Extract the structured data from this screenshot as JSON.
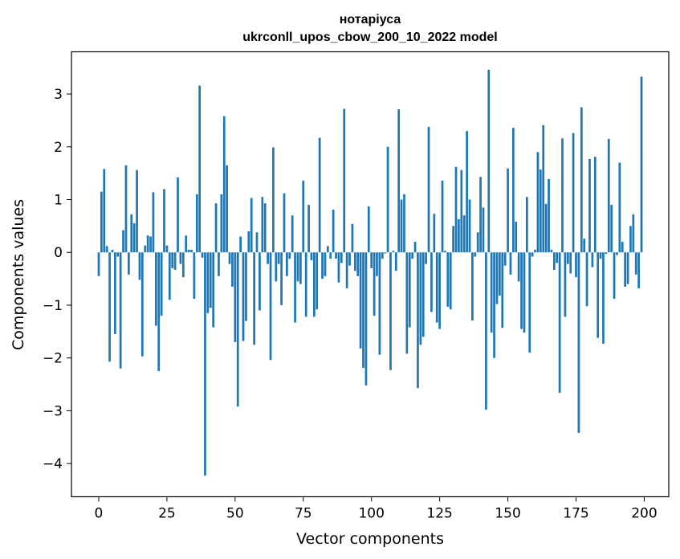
{
  "chart_data": {
    "type": "bar",
    "title_line1": "нотаріуса",
    "title_line2": "ukrconll_upos_cbow_200_10_2022 model",
    "xlabel": "Vector components",
    "ylabel": "Components values",
    "xlim": [
      -10,
      209
    ],
    "ylim": [
      -4.63,
      3.8
    ],
    "xticks": [
      0,
      25,
      50,
      75,
      100,
      125,
      150,
      175,
      200
    ],
    "yticks": [
      3,
      2,
      1,
      0,
      -1,
      -2,
      -3,
      -4
    ],
    "ytick_labels": [
      "3",
      "2",
      "1",
      "0",
      "−1",
      "−2",
      "−3",
      "−4"
    ],
    "bar_color": "#1f77b4",
    "values": [
      -0.45,
      1.15,
      1.58,
      0.12,
      -2.07,
      0.05,
      -1.55,
      -0.08,
      -2.2,
      0.42,
      1.65,
      -0.42,
      0.72,
      0.55,
      1.56,
      -0.52,
      -1.97,
      0.13,
      0.32,
      0.3,
      1.14,
      -1.39,
      -2.25,
      -1.2,
      1.2,
      0.13,
      -0.9,
      -0.3,
      -0.33,
      1.42,
      -0.22,
      -0.47,
      0.32,
      0.05,
      0.05,
      -0.88,
      1.1,
      3.16,
      -0.1,
      -4.23,
      -1.15,
      -1.05,
      -1.42,
      0.93,
      -0.45,
      1.1,
      2.58,
      1.65,
      -0.22,
      -0.65,
      -1.7,
      -2.92,
      0.3,
      -1.68,
      -1.3,
      0.4,
      1.03,
      -1.75,
      0.38,
      -1.1,
      1.05,
      0.93,
      -0.22,
      -2.04,
      1.99,
      -0.55,
      -0.22,
      -1.0,
      1.12,
      -0.45,
      -0.12,
      0.7,
      -1.33,
      -0.55,
      -0.6,
      1.36,
      -1.22,
      0.9,
      -0.15,
      -1.22,
      -1.08,
      2.17,
      -0.5,
      -0.45,
      0.12,
      -0.12,
      0.81,
      -0.12,
      -0.57,
      -0.2,
      2.72,
      -0.68,
      -0.25,
      0.54,
      -0.35,
      -0.45,
      -1.82,
      -2.19,
      -2.52,
      0.87,
      -0.3,
      -1.2,
      -0.45,
      -1.94,
      -0.12,
      -0.02,
      2.0,
      -2.23,
      0.03,
      -0.35,
      2.71,
      1.0,
      1.1,
      -1.92,
      -1.42,
      -0.12,
      0.2,
      -2.57,
      -1.75,
      -1.6,
      -0.22,
      2.38,
      -1.13,
      0.73,
      -1.33,
      -1.45,
      1.36,
      0.03,
      -1.03,
      -1.08,
      0.5,
      1.62,
      0.63,
      1.56,
      0.7,
      2.3,
      1.0,
      -1.29,
      -0.08,
      0.38,
      1.43,
      0.85,
      -2.98,
      3.46,
      -1.52,
      -2.0,
      -0.98,
      -0.82,
      -1.43,
      -0.25,
      1.59,
      -0.42,
      2.36,
      0.58,
      -0.55,
      -1.45,
      -1.52,
      1.05,
      -1.9,
      -0.08,
      0.05,
      1.9,
      1.57,
      2.41,
      0.92,
      1.39,
      0.05,
      -0.33,
      -0.2,
      -2.66,
      2.16,
      -1.22,
      -0.22,
      -0.4,
      2.26,
      -0.47,
      -3.42,
      2.75,
      0.26,
      -1.02,
      1.77,
      -0.28,
      1.81,
      -1.62,
      -0.12,
      -1.73,
      -0.03,
      2.15,
      0.9,
      -0.88,
      -0.05,
      1.7,
      0.2,
      -0.65,
      -0.6,
      0.5,
      0.72,
      -0.42,
      -0.68,
      3.33
    ]
  }
}
